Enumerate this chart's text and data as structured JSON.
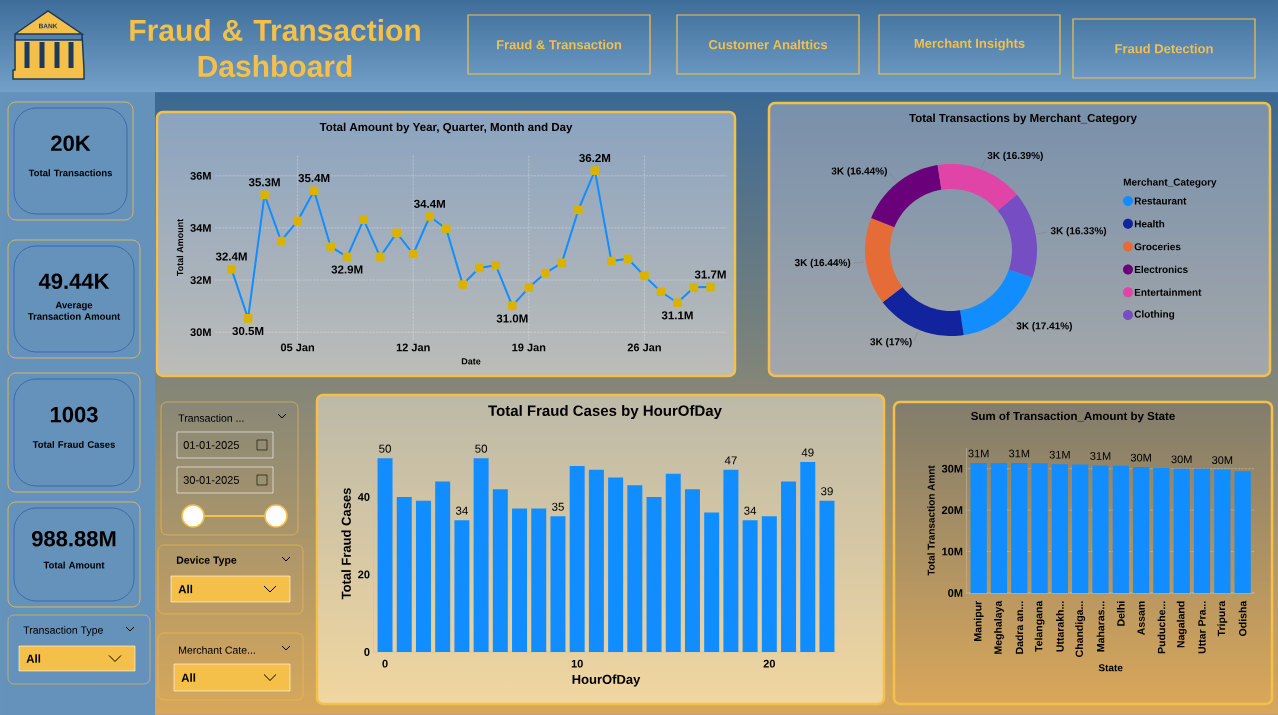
{
  "chart_data": [
    {
      "type": "other",
      "title": "Fraud & Transaction Dashboard",
      "annotations": [
        "BANK",
        "Fraud & Transaction",
        "Customer Analttics",
        "Merchant Insights",
        "Fraud Detection"
      ]
    },
    {
      "type": "other",
      "annotations": [
        "20K",
        "Total Transactions",
        "49.44K",
        "Average Transaction Amount",
        "1003",
        "Total Fraud Cases",
        "988.88M",
        "Total Amount"
      ]
    },
    {
      "type": "line",
      "title": "Total Amount by Year, Quarter, Month and Day",
      "xlabel": "Date",
      "ylabel": "Total Amount",
      "color": "#118dff",
      "marker": "square",
      "grid": true,
      "x": [
        "2025-01-01",
        "2025-01-02",
        "2025-01-03",
        "2025-01-04",
        "2025-01-05",
        "2025-01-06",
        "2025-01-07",
        "2025-01-08",
        "2025-01-09",
        "2025-01-10",
        "2025-01-11",
        "2025-01-12",
        "2025-01-13",
        "2025-01-14",
        "2025-01-15",
        "2025-01-16",
        "2025-01-17",
        "2025-01-18",
        "2025-01-19",
        "2025-01-20",
        "2025-01-21",
        "2025-01-22",
        "2025-01-23",
        "2025-01-24",
        "2025-01-25",
        "2025-01-26",
        "2025-01-27",
        "2025-01-28",
        "2025-01-29",
        "2025-01-30"
      ],
      "values": [
        32420000,
        30530000,
        35270000,
        33500000,
        34270000,
        35430000,
        33280000,
        32890000,
        34320000,
        32890000,
        33810000,
        33000000,
        34440000,
        33970000,
        31830000,
        32460000,
        32570000,
        31010000,
        31710000,
        32270000,
        32660000,
        34690000,
        36200000,
        32730000,
        32820000,
        32160000,
        31550000,
        31130000,
        31720000,
        31730000
      ],
      "value_labels": [
        "32.4M",
        "30.5M",
        "35.3M",
        null,
        null,
        "35.4M",
        null,
        "32.9M",
        null,
        null,
        null,
        null,
        "34.4M",
        null,
        null,
        null,
        null,
        "31.0M",
        null,
        null,
        null,
        null,
        "36.2M",
        null,
        null,
        null,
        null,
        "31.1M",
        null,
        "31.7M"
      ],
      "xlim": [
        "2024-12-31",
        "2025-01-31"
      ],
      "ylim": [
        29700000,
        36800000
      ],
      "xticks": [
        {
          "value": "2025-01-05",
          "label": "05 Jan"
        },
        {
          "value": "2025-01-12",
          "label": "12 Jan"
        },
        {
          "value": "2025-01-19",
          "label": "19 Jan"
        },
        {
          "value": "2025-01-26",
          "label": "26 Jan"
        }
      ],
      "yticks": [
        {
          "value": 30000000,
          "label": "30M"
        },
        {
          "value": 32000000,
          "label": "32M"
        },
        {
          "value": 34000000,
          "label": "34M"
        },
        {
          "value": 36000000,
          "label": "36M"
        }
      ]
    },
    {
      "type": "donut",
      "title": "Total Transactions by Merchant_Category",
      "legend": "right",
      "legend_title": "Merchant_Category",
      "categories": [
        "Restaurant",
        "Health",
        "Groceries",
        "Electronics",
        "Entertainment",
        "Clothing"
      ],
      "values": [
        17.41,
        17,
        16.44,
        16.44,
        16.39,
        16.33
      ],
      "colors": [
        "#118dff",
        "#12239e",
        "#e66c37",
        "#6b007b",
        "#e044a7",
        "#744ec2"
      ],
      "value_labels": [
        "3K (17.41%)",
        "3K (17%)",
        "3K (16.44%)",
        "3K (16.44%)",
        "3K (16.39%)",
        "3K (16.33%)"
      ]
    },
    {
      "type": "other",
      "annotations": [
        "Transaction ...",
        "01-01-2025",
        "30-01-2025",
        "Device Type",
        "All",
        "Merchant Cate...",
        "All",
        "Transaction Type",
        "All"
      ]
    },
    {
      "type": "bar",
      "title": "Total Fraud Cases by HourOfDay",
      "xlabel": "HourOfDay",
      "ylabel": "Total Fraud Cases",
      "color": "#118dff",
      "x": [
        0,
        1,
        2,
        3,
        4,
        5,
        6,
        7,
        8,
        9,
        10,
        11,
        12,
        13,
        14,
        15,
        16,
        17,
        18,
        19,
        20,
        21,
        22,
        23
      ],
      "values": [
        50,
        40,
        39,
        44,
        34,
        50,
        42,
        37,
        37,
        35,
        48,
        47,
        45,
        43,
        40,
        46,
        42,
        36,
        47,
        34,
        35,
        44,
        49,
        39
      ],
      "value_labels": [
        "50",
        null,
        null,
        null,
        "34",
        "50",
        null,
        null,
        null,
        "35",
        null,
        null,
        null,
        null,
        null,
        null,
        null,
        null,
        "47",
        "34",
        null,
        null,
        "49",
        "39"
      ],
      "xlim": [
        -0.6,
        23.6
      ],
      "ylim": [
        0,
        56
      ],
      "xticks": [
        0,
        10,
        20
      ],
      "yticks": [
        0,
        20,
        40
      ]
    },
    {
      "type": "bar",
      "title": "Sum of Transaction_Amount by State",
      "xlabel": "State",
      "ylabel": "Total Transaction Amnt",
      "color": "#118dff",
      "grid": "y",
      "categories": [
        "Manipur",
        "Meghalaya",
        "Dadra an...",
        "Telangana",
        "Uttarakh...",
        "Chandiga...",
        "Maharas...",
        "Delhi",
        "Assam",
        "Puduche...",
        "Nagaland",
        "Uttar Pra...",
        "Tripura",
        "Odisha"
      ],
      "values": [
        31400000,
        31400000,
        31400000,
        31300000,
        31100000,
        31000000,
        30800000,
        30700000,
        30400000,
        30200000,
        30000000,
        30000000,
        29800000,
        29400000
      ],
      "value_labels": [
        "31M",
        null,
        "31M",
        null,
        "31M",
        null,
        "31M",
        null,
        "30M",
        null,
        "30M",
        null,
        "30M",
        null
      ],
      "ylim": [
        0,
        35000000
      ],
      "yticks": [
        {
          "value": 0,
          "label": "0M"
        },
        {
          "value": 10000000,
          "label": "10M"
        },
        {
          "value": 20000000,
          "label": "20M"
        },
        {
          "value": 30000000,
          "label": "30M"
        }
      ]
    }
  ]
}
